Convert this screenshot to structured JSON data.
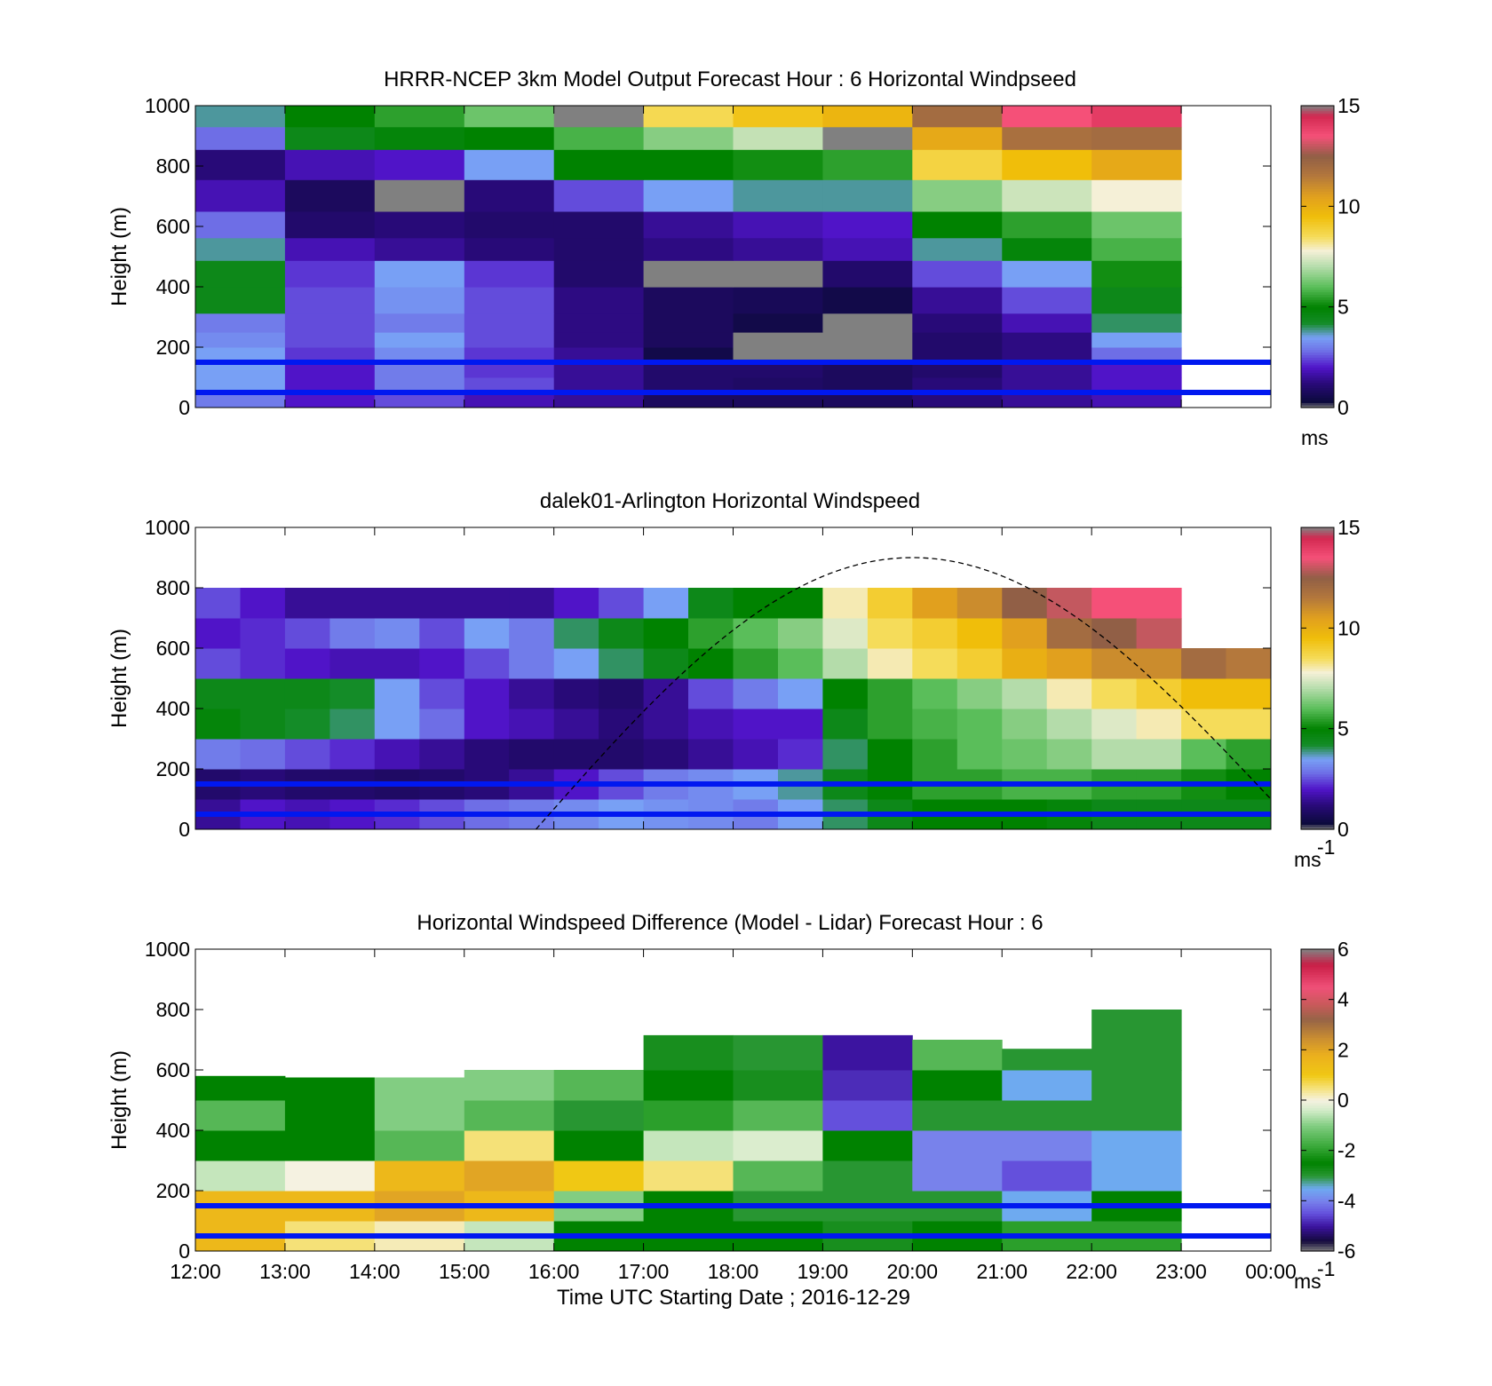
{
  "figure": {
    "x_axis": {
      "label": "Time UTC  Starting Date ; 2016-12-29",
      "tick_labels": [
        "12:00",
        "13:00",
        "14:00",
        "15:00",
        "16:00",
        "17:00",
        "18:00",
        "19:00",
        "20:00",
        "21:00",
        "22:00",
        "23:00",
        "00:00"
      ]
    }
  },
  "chart_data": [
    {
      "type": "heatmap",
      "title": "HRRR-NCEP 3km Model Output   Forecast Hour : 6 Horizontal Windpseed",
      "ylabel": "Height (m)",
      "ylim": [
        0,
        1000
      ],
      "y_tick_labels": [
        "0",
        "200",
        "400",
        "600",
        "800",
        "1000"
      ],
      "x_hours": [
        12,
        13,
        14,
        15,
        16,
        17,
        18,
        19,
        20,
        21,
        22
      ],
      "height_levels_m": [
        25,
        75,
        125,
        175,
        225,
        275,
        350,
        450,
        525,
        600,
        700,
        810,
        900,
        960
      ],
      "windspeed_ms": [
        [
          3.0,
          2.0,
          2.5,
          1.8,
          1.5,
          0.8,
          0.8,
          0.8,
          1.2,
          1.5,
          1.8
        ],
        [
          3.5,
          2.0,
          3.0,
          2.5,
          1.5,
          1.0,
          0.9,
          0.8,
          1.2,
          1.5,
          2.0
        ],
        [
          3.5,
          2.0,
          3.0,
          2.3,
          1.5,
          1.0,
          1.0,
          0.8,
          1.0,
          1.5,
          2.0
        ],
        [
          3.5,
          2.3,
          3.2,
          2.3,
          1.5,
          0.5,
          0.0,
          0.0,
          1.0,
          1.3,
          2.8
        ],
        [
          3.2,
          2.5,
          3.5,
          2.5,
          1.3,
          0.8,
          0.0,
          0.0,
          1.0,
          1.3,
          3.5
        ],
        [
          3.0,
          2.5,
          3.0,
          2.5,
          1.3,
          0.8,
          0.5,
          0.0,
          1.2,
          1.8,
          4.0
        ],
        [
          4.5,
          2.5,
          3.3,
          2.5,
          1.3,
          0.8,
          0.7,
          0.5,
          1.5,
          2.5,
          4.5
        ],
        [
          4.5,
          2.3,
          3.5,
          2.3,
          1.0,
          0.0,
          0.0,
          1.0,
          2.5,
          3.5,
          5.2
        ],
        [
          3.8,
          1.8,
          1.5,
          1.2,
          1.0,
          1.3,
          1.5,
          1.8,
          3.8,
          4.8,
          5.8
        ],
        [
          2.8,
          1.0,
          1.2,
          1.0,
          1.0,
          1.5,
          1.8,
          2.0,
          5.0,
          5.5,
          6.2
        ],
        [
          1.8,
          0.8,
          0.0,
          1.2,
          2.5,
          3.5,
          3.8,
          3.8,
          6.5,
          7.3,
          7.8
        ],
        [
          1.2,
          1.8,
          2.0,
          3.5,
          5.0,
          5.0,
          5.2,
          5.5,
          8.8,
          9.5,
          10.2
        ],
        [
          2.8,
          4.5,
          4.8,
          5.0,
          5.8,
          6.5,
          7.2,
          0.0,
          10.2,
          11.8,
          12.0
        ],
        [
          3.8,
          5.0,
          5.5,
          6.2,
          0.0,
          8.6,
          9.3,
          9.8,
          12.0,
          13.5,
          14.0
        ]
      ],
      "reference_lines_m": [
        50,
        150
      ],
      "colorbar": {
        "min": 0,
        "max": 15,
        "tick_labels": [
          "0",
          "5",
          "10",
          "15"
        ],
        "units_label": "ms"
      }
    },
    {
      "type": "heatmap",
      "title": "dalek01-Arlington  Horizontal Windspeed",
      "ylabel": "Height (m)",
      "ylim": [
        0,
        1000
      ],
      "y_tick_labels": [
        "0",
        "200",
        "400",
        "600",
        "800",
        "1000"
      ],
      "x_hours": [
        12.0,
        12.5,
        13.0,
        13.5,
        14.0,
        14.5,
        15.0,
        15.5,
        16.0,
        16.5,
        17.0,
        17.5,
        18.0,
        18.5,
        19.0,
        19.5,
        20.0,
        20.5,
        21.0,
        21.5,
        22.0,
        22.5,
        23.0,
        23.5
      ],
      "height_levels_m": [
        50,
        150,
        250,
        350,
        450,
        550,
        650,
        750
      ],
      "windspeed_ms": [
        [
          1.5,
          2.0,
          1.8,
          2.0,
          2.2,
          2.5,
          2.8,
          3.0,
          3.2,
          3.5,
          3.3,
          3.2,
          3.0,
          3.5,
          4.0,
          4.5,
          5.0,
          5.0,
          5.0,
          4.8,
          4.5,
          4.5,
          4.5,
          4.5
        ],
        [
          1.0,
          1.2,
          1.0,
          1.0,
          0.9,
          1.0,
          1.2,
          1.5,
          2.0,
          2.5,
          3.0,
          3.2,
          3.5,
          3.8,
          4.5,
          5.0,
          5.5,
          5.5,
          5.8,
          5.8,
          5.5,
          5.5,
          5.2,
          5.0
        ],
        [
          3.0,
          2.8,
          2.5,
          2.2,
          1.8,
          1.5,
          1.2,
          1.0,
          1.0,
          1.0,
          1.2,
          1.5,
          1.8,
          2.2,
          4.0,
          5.0,
          5.5,
          6.0,
          6.2,
          6.5,
          7.0,
          7.0,
          6.0,
          5.5
        ],
        [
          4.8,
          4.5,
          4.2,
          4.0,
          3.5,
          2.8,
          2.0,
          1.8,
          1.5,
          1.2,
          1.5,
          1.8,
          2.0,
          2.0,
          4.5,
          5.5,
          5.8,
          6.0,
          6.5,
          7.0,
          7.5,
          8.0,
          8.5,
          8.5
        ],
        [
          4.5,
          4.5,
          4.5,
          4.2,
          3.5,
          2.5,
          2.0,
          1.5,
          1.2,
          1.0,
          1.5,
          2.5,
          3.0,
          3.5,
          5.0,
          5.5,
          6.0,
          6.5,
          7.0,
          8.0,
          8.5,
          9.0,
          9.5,
          9.5
        ],
        [
          2.5,
          2.2,
          2.0,
          1.8,
          1.8,
          2.0,
          2.5,
          3.0,
          3.5,
          4.0,
          4.5,
          5.0,
          5.5,
          6.0,
          7.0,
          8.0,
          8.5,
          9.0,
          10.0,
          10.5,
          11.0,
          11.0,
          12.0,
          11.5
        ],
        [
          2.0,
          2.2,
          2.5,
          3.0,
          3.2,
          2.5,
          3.5,
          3.0,
          4.0,
          4.5,
          5.0,
          5.5,
          6.0,
          6.5,
          7.5,
          8.5,
          9.0,
          9.5,
          10.5,
          12.0,
          12.5,
          13.0,
          null,
          null
        ],
        [
          2.5,
          2.0,
          1.5,
          1.5,
          1.5,
          1.5,
          1.5,
          1.5,
          2.0,
          2.5,
          3.5,
          4.5,
          5.0,
          5.0,
          8.0,
          9.0,
          10.5,
          11.0,
          12.5,
          13.0,
          13.5,
          13.5,
          null,
          null
        ]
      ],
      "reference_lines_m": [
        50,
        150
      ],
      "dashed_curve": {
        "start_hour": 15.8,
        "peak_hour": 20.0,
        "peak_height_m": 900,
        "end_hour": 24.0,
        "end_height_m": 100
      },
      "colorbar": {
        "min": 0,
        "max": 15,
        "tick_labels": [
          "0",
          "5",
          "10",
          "15"
        ],
        "units_label": "ms",
        "units_exponent": "-1"
      }
    },
    {
      "type": "heatmap",
      "title": "Horizontal Windspeed Difference (Model - Lidar) Forecast Hour : 6",
      "ylabel": "Height (m)",
      "ylim": [
        0,
        1000
      ],
      "y_tick_labels": [
        "0",
        "200",
        "400",
        "600",
        "800",
        "1000"
      ],
      "x_hours": [
        12,
        13,
        14,
        15,
        16,
        17,
        18,
        19,
        20,
        21,
        22
      ],
      "column_top_m": [
        580,
        575,
        575,
        600,
        600,
        715,
        715,
        715,
        700,
        670,
        800
      ],
      "height_levels_m": [
        50,
        150,
        250,
        350,
        450,
        550,
        650
      ],
      "difference_ms": [
        [
          1.5,
          0.5,
          0.2,
          -0.5,
          -2.5,
          -2.5,
          -2.5,
          -2.8,
          -2.5,
          -2.0,
          -2.0
        ],
        [
          1.5,
          1.5,
          2.0,
          1.5,
          -1.0,
          -2.5,
          -3.0,
          -3.0,
          -3.0,
          -3.5,
          -2.5
        ],
        [
          -0.5,
          0.0,
          1.5,
          2.0,
          1.0,
          0.5,
          -1.5,
          -3.0,
          -4.0,
          -4.5,
          -3.5
        ],
        [
          -2.5,
          -2.5,
          -1.5,
          0.5,
          -2.5,
          -0.5,
          -0.3,
          -2.5,
          -4.0,
          -4.0,
          -3.5
        ],
        [
          -1.5,
          -2.5,
          -1.0,
          -1.5,
          -3.0,
          -2.0,
          -1.5,
          -4.5,
          -3.0,
          -3.0,
          -3.0
        ],
        [
          -2.5,
          -2.5,
          -1.0,
          -1.0,
          -1.5,
          -2.5,
          -2.8,
          -4.8,
          -2.5,
          -3.5,
          -3.0
        ],
        [
          null,
          null,
          null,
          null,
          null,
          -2.8,
          -3.0,
          -5.0,
          -1.5,
          -3.0,
          -3.0
        ]
      ],
      "reference_lines_m": [
        50,
        150
      ],
      "colorbar": {
        "min": -6,
        "max": 6,
        "tick_labels": [
          "-6",
          "-4",
          "-2",
          "0",
          "2",
          "4",
          "6"
        ],
        "units_label": "ms",
        "units_exponent": "-1"
      }
    }
  ]
}
